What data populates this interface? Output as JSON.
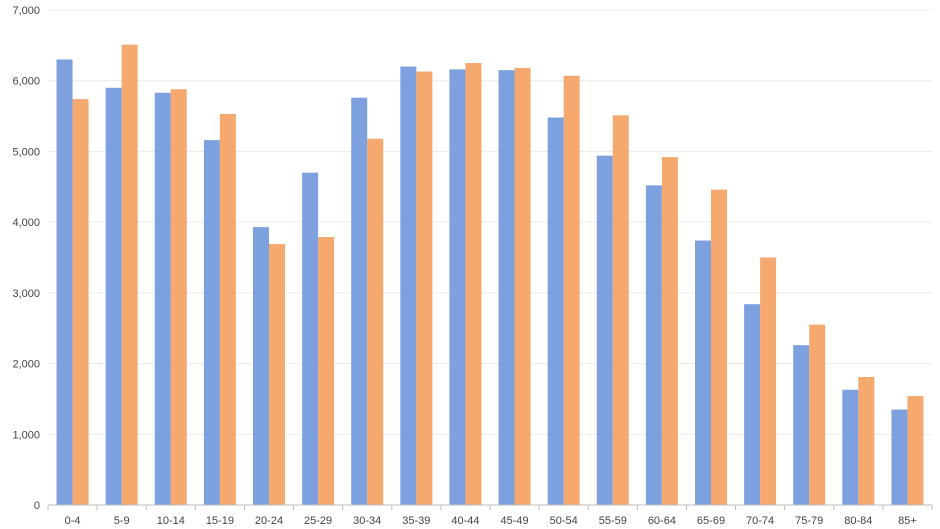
{
  "chart_data": {
    "type": "bar",
    "title": "",
    "xlabel": "",
    "ylabel": "",
    "ylim": [
      0,
      7000
    ],
    "yticks": [
      0,
      1000,
      2000,
      3000,
      4000,
      5000,
      6000,
      7000
    ],
    "ytick_labels": [
      "0",
      "1,000",
      "2,000",
      "3,000",
      "4,000",
      "5,000",
      "6,000",
      "7,000"
    ],
    "grid": true,
    "legend": "none",
    "categories": [
      "0-4",
      "5-9",
      "10-14",
      "15-19",
      "20-24",
      "25-29",
      "30-34",
      "35-39",
      "40-44",
      "45-49",
      "50-54",
      "55-59",
      "60-64",
      "65-69",
      "70-74",
      "75-79",
      "80-84",
      "85+"
    ],
    "series": [
      {
        "color": "#6f97dc",
        "values": [
          6300,
          5900,
          5830,
          5160,
          3930,
          4700,
          5760,
          6200,
          6160,
          6150,
          5480,
          4940,
          4520,
          3740,
          2840,
          2260,
          1630,
          1350
        ]
      },
      {
        "color": "#f5a05f",
        "values": [
          5740,
          6510,
          5880,
          5530,
          3690,
          3790,
          5180,
          6130,
          6250,
          6180,
          6070,
          5510,
          4920,
          4460,
          3500,
          2550,
          1810,
          1540
        ]
      }
    ]
  }
}
